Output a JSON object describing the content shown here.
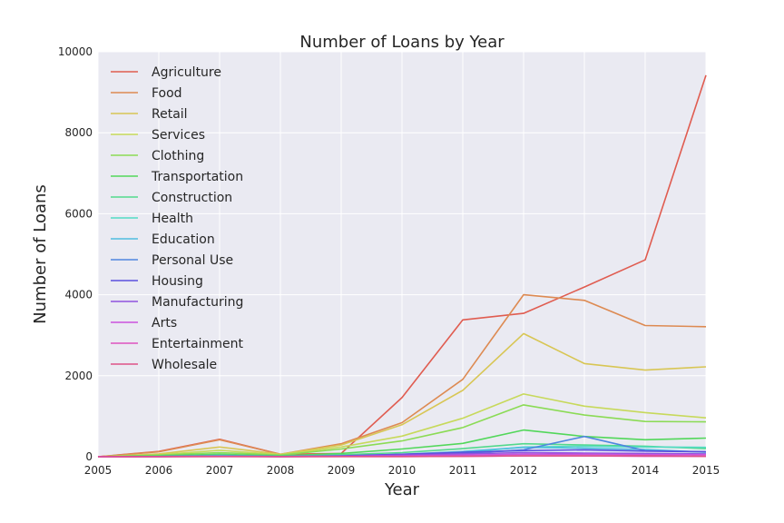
{
  "chart_data": {
    "type": "line",
    "title": "Number of Loans by Year",
    "xlabel": "Year",
    "ylabel": "Number of Loans",
    "x": [
      2005,
      2006,
      2007,
      2008,
      2009,
      2010,
      2011,
      2012,
      2013,
      2014,
      2015
    ],
    "xlim": [
      2005,
      2015
    ],
    "ylim": [
      0,
      10000
    ],
    "yticks": [
      0,
      2000,
      4000,
      6000,
      8000,
      10000
    ],
    "grid": true,
    "legend_position": "top-left",
    "series": [
      {
        "name": "Agriculture",
        "color": "#e05c50",
        "values": [
          0,
          130,
          430,
          60,
          80,
          1460,
          3380,
          3540,
          4190,
          4860,
          9420
        ]
      },
      {
        "name": "Food",
        "color": "#dd8a52",
        "values": [
          0,
          120,
          420,
          60,
          320,
          840,
          1910,
          4000,
          3860,
          3240,
          3210
        ]
      },
      {
        "name": "Retail",
        "color": "#d8c654",
        "values": [
          0,
          70,
          240,
          60,
          290,
          790,
          1640,
          3040,
          2300,
          2140,
          2220
        ]
      },
      {
        "name": "Services",
        "color": "#c7d95b",
        "values": [
          0,
          50,
          160,
          50,
          240,
          510,
          950,
          1550,
          1250,
          1090,
          960
        ]
      },
      {
        "name": "Clothing",
        "color": "#8bdb55",
        "values": [
          0,
          40,
          100,
          40,
          190,
          390,
          720,
          1280,
          1030,
          870,
          860
        ]
      },
      {
        "name": "Transportation",
        "color": "#52d75a",
        "values": [
          0,
          20,
          60,
          20,
          80,
          190,
          330,
          660,
          500,
          420,
          460
        ]
      },
      {
        "name": "Construction",
        "color": "#52d98c",
        "values": [
          0,
          10,
          40,
          10,
          50,
          100,
          200,
          320,
          290,
          260,
          200
        ]
      },
      {
        "name": "Health",
        "color": "#53dbc4",
        "values": [
          0,
          5,
          20,
          5,
          20,
          50,
          100,
          240,
          260,
          240,
          230
        ]
      },
      {
        "name": "Education",
        "color": "#4fbde0",
        "values": [
          0,
          5,
          20,
          5,
          20,
          60,
          130,
          230,
          210,
          180,
          110
        ]
      },
      {
        "name": "Personal Use",
        "color": "#4f86e0",
        "values": [
          0,
          5,
          15,
          5,
          10,
          30,
          80,
          170,
          500,
          150,
          120
        ]
      },
      {
        "name": "Housing",
        "color": "#5a50de",
        "values": [
          0,
          5,
          15,
          5,
          20,
          60,
          110,
          150,
          170,
          140,
          120
        ]
      },
      {
        "name": "Manufacturing",
        "color": "#8f52de",
        "values": [
          0,
          5,
          10,
          5,
          10,
          40,
          70,
          100,
          90,
          80,
          70
        ]
      },
      {
        "name": "Arts",
        "color": "#cb52de",
        "values": [
          0,
          5,
          10,
          5,
          10,
          20,
          40,
          60,
          60,
          50,
          50
        ]
      },
      {
        "name": "Entertainment",
        "color": "#de52c0",
        "values": [
          0,
          0,
          5,
          0,
          5,
          5,
          10,
          20,
          20,
          10,
          10
        ]
      },
      {
        "name": "Wholesale",
        "color": "#de5287",
        "values": [
          0,
          0,
          5,
          0,
          5,
          5,
          10,
          20,
          20,
          20,
          10
        ]
      }
    ]
  }
}
